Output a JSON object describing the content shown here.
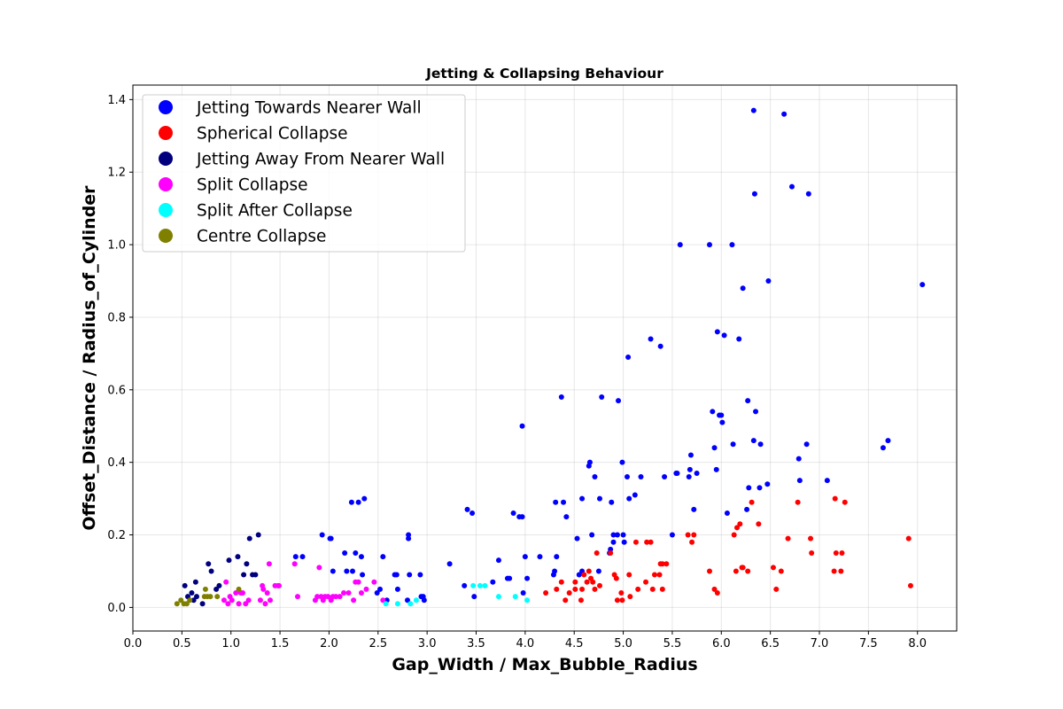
{
  "chart_data": {
    "type": "scatter",
    "title": "Jetting & Collapsing Behaviour",
    "xlabel": "Gap_Width / Max_Bubble_Radius",
    "ylabel": "Offset_Distance / Radius_of_Cylinder",
    "xlim": [
      0.0,
      8.4
    ],
    "ylim": [
      -0.065,
      1.44
    ],
    "xticks": [
      "0.0",
      "0.5",
      "1.0",
      "1.5",
      "2.0",
      "2.5",
      "3.0",
      "3.5",
      "4.0",
      "4.5",
      "5.0",
      "5.5",
      "6.0",
      "6.5",
      "7.0",
      "7.5",
      "8.0"
    ],
    "yticks": [
      "0.0",
      "0.2",
      "0.4",
      "0.6",
      "0.8",
      "1.0",
      "1.2",
      "1.4"
    ],
    "grid": true,
    "legend_position": "top-left",
    "series": [
      {
        "name": "Jetting Towards Nearer Wall",
        "color": "#0000ff",
        "points": [
          [
            1.66,
            0.14
          ],
          [
            1.73,
            0.14
          ],
          [
            1.93,
            0.2
          ],
          [
            2.01,
            0.19
          ],
          [
            2.02,
            0.19
          ],
          [
            2.04,
            0.1
          ],
          [
            2.16,
            0.15
          ],
          [
            2.18,
            0.1
          ],
          [
            2.23,
            0.29
          ],
          [
            2.24,
            0.1
          ],
          [
            2.27,
            0.15
          ],
          [
            2.3,
            0.29
          ],
          [
            2.33,
            0.14
          ],
          [
            2.36,
            0.3
          ],
          [
            2.34,
            0.09
          ],
          [
            2.49,
            0.04
          ],
          [
            2.52,
            0.05
          ],
          [
            2.55,
            0.14
          ],
          [
            2.59,
            0.02
          ],
          [
            2.67,
            0.09
          ],
          [
            2.69,
            0.09
          ],
          [
            2.7,
            0.05
          ],
          [
            2.8,
            0.02
          ],
          [
            2.81,
            0.2
          ],
          [
            2.81,
            0.19
          ],
          [
            2.82,
            0.09
          ],
          [
            2.93,
            0.09
          ],
          [
            2.94,
            0.03
          ],
          [
            2.96,
            0.03
          ],
          [
            2.97,
            0.02
          ],
          [
            3.23,
            0.12
          ],
          [
            3.38,
            0.06
          ],
          [
            3.41,
            0.27
          ],
          [
            3.46,
            0.26
          ],
          [
            3.48,
            0.03
          ],
          [
            3.67,
            0.07
          ],
          [
            3.73,
            0.13
          ],
          [
            3.82,
            0.08
          ],
          [
            3.84,
            0.08
          ],
          [
            3.88,
            0.26
          ],
          [
            3.94,
            0.25
          ],
          [
            3.97,
            0.25
          ],
          [
            3.97,
            0.5
          ],
          [
            3.98,
            0.04
          ],
          [
            4.0,
            0.14
          ],
          [
            4.02,
            0.08
          ],
          [
            4.15,
            0.14
          ],
          [
            4.29,
            0.09
          ],
          [
            4.3,
            0.1
          ],
          [
            4.31,
            0.29
          ],
          [
            4.32,
            0.14
          ],
          [
            4.37,
            0.58
          ],
          [
            4.39,
            0.29
          ],
          [
            4.42,
            0.25
          ],
          [
            4.53,
            0.19
          ],
          [
            4.55,
            0.09
          ],
          [
            4.58,
            0.1
          ],
          [
            4.58,
            0.3
          ],
          [
            4.65,
            0.39
          ],
          [
            4.66,
            0.4
          ],
          [
            4.68,
            0.2
          ],
          [
            4.71,
            0.36
          ],
          [
            4.75,
            0.1
          ],
          [
            4.76,
            0.3
          ],
          [
            4.78,
            0.58
          ],
          [
            4.86,
            0.15
          ],
          [
            4.87,
            0.16
          ],
          [
            4.88,
            0.29
          ],
          [
            4.9,
            0.18
          ],
          [
            4.9,
            0.2
          ],
          [
            4.94,
            0.2
          ],
          [
            4.95,
            0.57
          ],
          [
            4.99,
            0.4
          ],
          [
            5.0,
            0.2
          ],
          [
            5.01,
            0.18
          ],
          [
            5.04,
            0.36
          ],
          [
            5.05,
            0.69
          ],
          [
            5.06,
            0.3
          ],
          [
            5.12,
            0.31
          ],
          [
            5.18,
            0.36
          ],
          [
            5.28,
            0.74
          ],
          [
            5.38,
            0.72
          ],
          [
            5.42,
            0.36
          ],
          [
            5.5,
            0.2
          ],
          [
            5.54,
            0.37
          ],
          [
            5.55,
            0.37
          ],
          [
            5.58,
            1.0
          ],
          [
            5.67,
            0.36
          ],
          [
            5.68,
            0.38
          ],
          [
            5.69,
            0.42
          ],
          [
            5.72,
            0.27
          ],
          [
            5.75,
            0.37
          ],
          [
            5.88,
            1.0
          ],
          [
            5.91,
            0.54
          ],
          [
            5.93,
            0.44
          ],
          [
            5.95,
            0.38
          ],
          [
            5.96,
            0.76
          ],
          [
            5.98,
            0.53
          ],
          [
            6.0,
            0.53
          ],
          [
            6.01,
            0.51
          ],
          [
            6.03,
            0.75
          ],
          [
            6.06,
            0.26
          ],
          [
            6.11,
            1.0
          ],
          [
            6.12,
            0.45
          ],
          [
            6.18,
            0.74
          ],
          [
            6.22,
            0.88
          ],
          [
            6.26,
            0.27
          ],
          [
            6.28,
            0.33
          ],
          [
            6.27,
            0.57
          ],
          [
            6.33,
            1.37
          ],
          [
            6.34,
            1.14
          ],
          [
            6.33,
            0.46
          ],
          [
            6.35,
            0.54
          ],
          [
            6.39,
            0.33
          ],
          [
            6.4,
            0.45
          ],
          [
            6.47,
            0.34
          ],
          [
            6.48,
            0.9
          ],
          [
            6.64,
            1.36
          ],
          [
            6.72,
            1.16
          ],
          [
            6.79,
            0.41
          ],
          [
            6.8,
            0.35
          ],
          [
            6.87,
            0.45
          ],
          [
            6.89,
            1.14
          ],
          [
            7.08,
            0.35
          ],
          [
            7.65,
            0.44
          ],
          [
            7.7,
            0.46
          ],
          [
            8.05,
            0.89
          ]
        ]
      },
      {
        "name": "Spherical Collapse",
        "color": "#ff0000",
        "points": [
          [
            4.21,
            0.04
          ],
          [
            4.32,
            0.05
          ],
          [
            4.37,
            0.07
          ],
          [
            4.41,
            0.02
          ],
          [
            4.45,
            0.04
          ],
          [
            4.51,
            0.05
          ],
          [
            4.51,
            0.07
          ],
          [
            4.57,
            0.02
          ],
          [
            4.58,
            0.05
          ],
          [
            4.6,
            0.09
          ],
          [
            4.63,
            0.07
          ],
          [
            4.65,
            0.1
          ],
          [
            4.67,
            0.08
          ],
          [
            4.69,
            0.07
          ],
          [
            4.71,
            0.05
          ],
          [
            4.73,
            0.15
          ],
          [
            4.76,
            0.06
          ],
          [
            4.87,
            0.15
          ],
          [
            4.91,
            0.09
          ],
          [
            4.93,
            0.08
          ],
          [
            4.94,
            0.02
          ],
          [
            4.98,
            0.04
          ],
          [
            4.99,
            0.02
          ],
          [
            5.06,
            0.09
          ],
          [
            5.07,
            0.03
          ],
          [
            5.13,
            0.18
          ],
          [
            5.15,
            0.05
          ],
          [
            5.23,
            0.07
          ],
          [
            5.24,
            0.18
          ],
          [
            5.28,
            0.18
          ],
          [
            5.3,
            0.05
          ],
          [
            5.32,
            0.09
          ],
          [
            5.37,
            0.09
          ],
          [
            5.38,
            0.12
          ],
          [
            5.4,
            0.12
          ],
          [
            5.4,
            0.05
          ],
          [
            5.44,
            0.12
          ],
          [
            5.66,
            0.2
          ],
          [
            5.7,
            0.18
          ],
          [
            5.72,
            0.2
          ],
          [
            5.88,
            0.1
          ],
          [
            5.93,
            0.05
          ],
          [
            5.96,
            0.04
          ],
          [
            6.13,
            0.2
          ],
          [
            6.15,
            0.1
          ],
          [
            6.16,
            0.22
          ],
          [
            6.19,
            0.23
          ],
          [
            6.21,
            0.11
          ],
          [
            6.22,
            0.11
          ],
          [
            6.27,
            0.1
          ],
          [
            6.31,
            0.29
          ],
          [
            6.38,
            0.23
          ],
          [
            6.53,
            0.11
          ],
          [
            6.56,
            0.05
          ],
          [
            6.61,
            0.1
          ],
          [
            6.68,
            0.19
          ],
          [
            6.78,
            0.29
          ],
          [
            6.91,
            0.19
          ],
          [
            6.92,
            0.15
          ],
          [
            7.15,
            0.1
          ],
          [
            7.16,
            0.3
          ],
          [
            7.17,
            0.15
          ],
          [
            7.22,
            0.1
          ],
          [
            7.23,
            0.15
          ],
          [
            7.26,
            0.29
          ],
          [
            7.91,
            0.19
          ],
          [
            7.93,
            0.06
          ]
        ]
      },
      {
        "name": "Jetting Away From Nearer Wall",
        "color": "#00007f",
        "points": [
          [
            0.53,
            0.06
          ],
          [
            0.56,
            0.03
          ],
          [
            0.6,
            0.04
          ],
          [
            0.62,
            0.02
          ],
          [
            0.64,
            0.07
          ],
          [
            0.65,
            0.03
          ],
          [
            0.71,
            0.01
          ],
          [
            0.77,
            0.12
          ],
          [
            0.8,
            0.1
          ],
          [
            0.85,
            0.05
          ],
          [
            0.88,
            0.06
          ],
          [
            0.98,
            0.13
          ],
          [
            1.07,
            0.14
          ],
          [
            1.13,
            0.09
          ],
          [
            1.16,
            0.12
          ],
          [
            1.19,
            0.19
          ],
          [
            1.22,
            0.09
          ],
          [
            1.25,
            0.09
          ],
          [
            1.28,
            0.2
          ]
        ]
      },
      {
        "name": "Split Collapse",
        "color": "#ff00ff",
        "points": [
          [
            0.93,
            0.02
          ],
          [
            0.95,
            0.07
          ],
          [
            0.97,
            0.01
          ],
          [
            0.99,
            0.03
          ],
          [
            1.01,
            0.02
          ],
          [
            1.05,
            0.04
          ],
          [
            1.08,
            0.01
          ],
          [
            1.1,
            0.04
          ],
          [
            1.12,
            0.04
          ],
          [
            1.15,
            0.01
          ],
          [
            1.18,
            0.02
          ],
          [
            1.3,
            0.02
          ],
          [
            1.32,
            0.06
          ],
          [
            1.33,
            0.05
          ],
          [
            1.35,
            0.01
          ],
          [
            1.37,
            0.04
          ],
          [
            1.39,
            0.12
          ],
          [
            1.4,
            0.02
          ],
          [
            1.45,
            0.06
          ],
          [
            1.48,
            0.06
          ],
          [
            1.49,
            0.06
          ],
          [
            1.65,
            0.12
          ],
          [
            1.68,
            0.03
          ],
          [
            1.86,
            0.02
          ],
          [
            1.88,
            0.03
          ],
          [
            1.9,
            0.11
          ],
          [
            1.92,
            0.03
          ],
          [
            1.94,
            0.02
          ],
          [
            1.96,
            0.03
          ],
          [
            1.99,
            0.03
          ],
          [
            2.02,
            0.02
          ],
          [
            2.04,
            0.03
          ],
          [
            2.07,
            0.03
          ],
          [
            2.11,
            0.03
          ],
          [
            2.15,
            0.04
          ],
          [
            2.2,
            0.04
          ],
          [
            2.25,
            0.02
          ],
          [
            2.27,
            0.07
          ],
          [
            2.3,
            0.07
          ],
          [
            2.33,
            0.04
          ],
          [
            2.38,
            0.05
          ],
          [
            2.46,
            0.07
          ],
          [
            2.55,
            0.02
          ]
        ]
      },
      {
        "name": "Split After Collapse",
        "color": "#00ffff",
        "points": [
          [
            2.58,
            0.01
          ],
          [
            2.7,
            0.01
          ],
          [
            2.83,
            0.01
          ],
          [
            2.89,
            0.02
          ],
          [
            3.47,
            0.06
          ],
          [
            3.54,
            0.06
          ],
          [
            3.59,
            0.06
          ],
          [
            3.73,
            0.03
          ],
          [
            3.9,
            0.03
          ],
          [
            4.02,
            0.02
          ]
        ]
      },
      {
        "name": "Centre Collapse",
        "color": "#808000",
        "points": [
          [
            0.45,
            0.01
          ],
          [
            0.49,
            0.02
          ],
          [
            0.52,
            0.01
          ],
          [
            0.55,
            0.01
          ],
          [
            0.58,
            0.02
          ],
          [
            0.73,
            0.03
          ],
          [
            0.74,
            0.05
          ],
          [
            0.76,
            0.03
          ],
          [
            0.79,
            0.03
          ],
          [
            0.86,
            0.03
          ],
          [
            1.08,
            0.05
          ]
        ]
      }
    ]
  }
}
